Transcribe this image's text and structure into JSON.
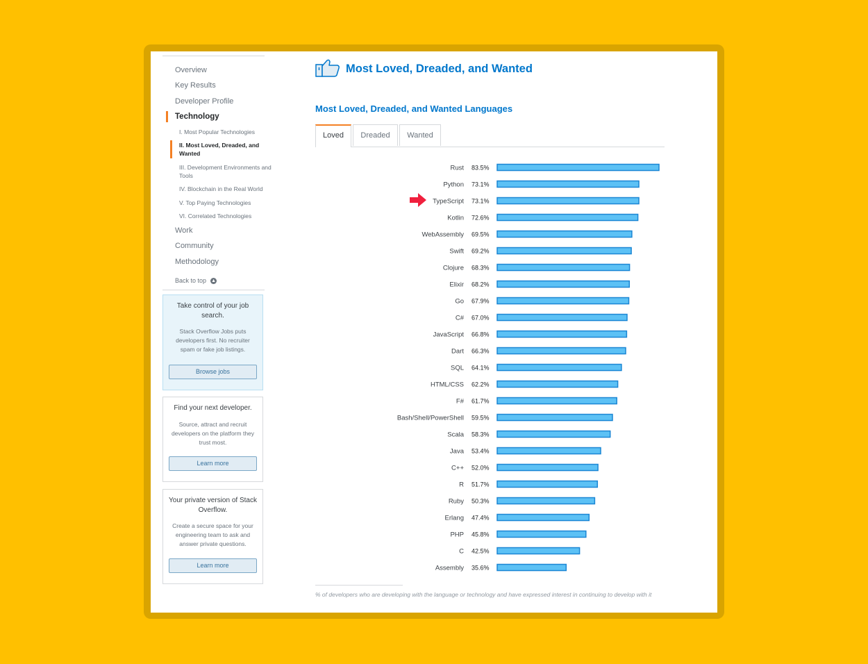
{
  "nav": {
    "items": [
      "Overview",
      "Key Results",
      "Developer Profile"
    ],
    "active": "Technology",
    "sub_items": [
      "I. Most Popular Technologies",
      "II. Most Loved, Dreaded, and Wanted",
      "III. Development Environments and Tools",
      "IV. Blockchain in the Real World",
      "V. Top Paying Technologies",
      "VI. Correlated Technologies"
    ],
    "lower_items": [
      "Work",
      "Community",
      "Methodology"
    ],
    "back_to_top": "Back to top"
  },
  "promos": [
    {
      "title": "Take control of your job search.",
      "body": "Stack Overflow Jobs puts developers first. No recruiter spam or fake job listings.",
      "button": "Browse jobs"
    },
    {
      "title": "Find your next developer.",
      "body": "Source, attract and recruit developers on the platform they trust most.",
      "button": "Learn more"
    },
    {
      "title": "Your private version of Stack Overflow.",
      "body": "Create a secure space for your engineering team to ask and answer private questions.",
      "button": "Learn more"
    }
  ],
  "main": {
    "page_title": "Most Loved, Dreaded, and Wanted",
    "section_title": "Most Loved, Dreaded, and Wanted Languages",
    "tabs": [
      "Loved",
      "Dreaded",
      "Wanted"
    ],
    "active_tab": "Loved",
    "footnote": "% of developers who are developing with the language or technology and have expressed interest in continuing to develop with it"
  },
  "colors": {
    "bar_fill": "#5CC1F5",
    "bar_stroke": "#1B86D4",
    "title_blue": "#0077CC",
    "accent_orange": "#F48024",
    "arrow_red": "#F0203E"
  },
  "chart_data": {
    "type": "bar",
    "orientation": "horizontal",
    "value_format": "percent",
    "categories": [
      "Rust",
      "Python",
      "TypeScript",
      "Kotlin",
      "WebAssembly",
      "Swift",
      "Clojure",
      "Elixir",
      "Go",
      "C#",
      "JavaScript",
      "Dart",
      "SQL",
      "HTML/CSS",
      "F#",
      "Bash/Shell/PowerShell",
      "Scala",
      "Java",
      "C++",
      "R",
      "Ruby",
      "Erlang",
      "PHP",
      "C",
      "Assembly"
    ],
    "values": [
      83.5,
      73.1,
      73.1,
      72.6,
      69.5,
      69.2,
      68.3,
      68.2,
      67.9,
      67.0,
      66.8,
      66.3,
      64.1,
      62.2,
      61.7,
      59.5,
      58.3,
      53.4,
      52.0,
      51.7,
      50.3,
      47.4,
      45.8,
      42.5,
      35.6
    ],
    "labels": [
      "83.5%",
      "73.1%",
      "73.1%",
      "72.6%",
      "69.5%",
      "69.2%",
      "68.3%",
      "68.2%",
      "67.9%",
      "67.0%",
      "66.8%",
      "66.3%",
      "64.1%",
      "62.2%",
      "61.7%",
      "59.5%",
      "58.3%",
      "53.4%",
      "52.0%",
      "51.7%",
      "50.3%",
      "47.4%",
      "45.8%",
      "42.5%",
      "35.6%"
    ],
    "highlighted": "TypeScript",
    "xlim": [
      0,
      83.5
    ],
    "grid": false
  }
}
